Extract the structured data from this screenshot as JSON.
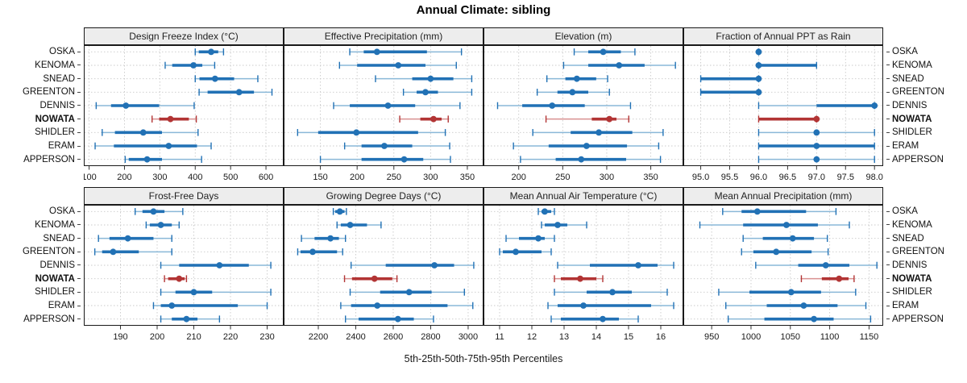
{
  "title": "Annual Climate: sibling",
  "caption": "5th-25th-50th-75th-95th Percentiles",
  "percentile_labels": [
    "5th",
    "25th",
    "50th",
    "75th",
    "95th"
  ],
  "highlight_station": "NOWATA",
  "colors": {
    "series_blue": "#2171b5",
    "series_blue_light": "#8ab8d8",
    "series_red": "#b23434",
    "series_red_light": "#d99090",
    "strip_bg": "#ededed",
    "grid": "#c9c9c9",
    "border": "#1a1a1a",
    "tick": "#333333"
  },
  "chart_data": {
    "type": "dotplot with 5-25-50-75-95 percentile intervals (2x4 trellis, shared station rows)",
    "legend_position": "none",
    "grid": "dashed",
    "stations": [
      "OSKA",
      "KENOMA",
      "SNEAD",
      "GREENTON",
      "DENNIS",
      "NOWATA",
      "SHIDLER",
      "ERAM",
      "APPERSON"
    ],
    "panels": [
      {
        "title": "Design Freeze Index (°C)",
        "row": "top",
        "xlim": [
          85,
          650
        ],
        "ticks": [
          100,
          200,
          300,
          400,
          500,
          600
        ],
        "tick_labels": [
          "100",
          "200",
          "300",
          "400",
          "500",
          "600"
        ],
        "values": {
          "OSKA": [
            400,
            410,
            445,
            465,
            480
          ],
          "KENOMA": [
            315,
            335,
            395,
            420,
            455
          ],
          "SNEAD": [
            400,
            412,
            456,
            510,
            577
          ],
          "GREENTON": [
            411,
            435,
            524,
            566,
            617
          ],
          "DENNIS": [
            120,
            162,
            204,
            298,
            397
          ],
          "NOWATA": [
            278,
            298,
            330,
            382,
            403
          ],
          "SHIDLER": [
            137,
            173,
            253,
            306,
            408
          ],
          "ERAM": [
            117,
            170,
            325,
            405,
            445
          ],
          "APPERSON": [
            202,
            212,
            264,
            306,
            418
          ]
        }
      },
      {
        "title": "Effective Precipitation (mm)",
        "row": "top",
        "xlim": [
          100,
          372
        ],
        "ticks": [
          150,
          200,
          250,
          300,
          350
        ],
        "tick_labels": [
          "150",
          "200",
          "250",
          "300",
          "350"
        ],
        "values": {
          "OSKA": [
            190,
            209,
            227,
            295,
            342
          ],
          "KENOMA": [
            176,
            200,
            256,
            293,
            335
          ],
          "SNEAD": [
            225,
            275,
            300,
            331,
            356
          ],
          "GREENTON": [
            263,
            281,
            293,
            310,
            356
          ],
          "DENNIS": [
            168,
            190,
            242,
            279,
            340
          ],
          "NOWATA": [
            258,
            286,
            304,
            315,
            324
          ],
          "SHIDLER": [
            119,
            147,
            199,
            283,
            320
          ],
          "ERAM": [
            183,
            206,
            237,
            275,
            326
          ],
          "APPERSON": [
            150,
            206,
            264,
            290,
            327
          ]
        }
      },
      {
        "title": "Elevation (m)",
        "row": "top",
        "xlim": [
          160,
          387
        ],
        "ticks": [
          200,
          250,
          300,
          350
        ],
        "tick_labels": [
          "200",
          "250",
          "300",
          "350"
        ],
        "values": {
          "OSKA": [
            263,
            279,
            296,
            316,
            332
          ],
          "KENOMA": [
            251,
            279,
            314,
            343,
            378
          ],
          "SNEAD": [
            232,
            253,
            266,
            288,
            301
          ],
          "GREENTON": [
            221,
            244,
            261,
            279,
            303
          ],
          "DENNIS": [
            176,
            204,
            238,
            275,
            327
          ],
          "NOWATA": [
            231,
            283,
            303,
            311,
            325
          ],
          "SHIDLER": [
            216,
            259,
            291,
            329,
            364
          ],
          "ERAM": [
            194,
            234,
            277,
            323,
            359
          ],
          "APPERSON": [
            202,
            242,
            271,
            322,
            361
          ]
        }
      },
      {
        "title": "Fraction of Annual PPT as Rain",
        "row": "top",
        "xlim": [
          94.7,
          98.15
        ],
        "ticks": [
          95.0,
          95.5,
          96.0,
          96.5,
          97.0,
          97.5,
          98.0
        ],
        "tick_labels": [
          "95.0",
          "95.5",
          "96.0",
          "96.5",
          "97.0",
          "97.5",
          "98.0"
        ],
        "values": {
          "OSKA": [
            96,
            96,
            96,
            96,
            96
          ],
          "KENOMA": [
            96,
            96,
            96,
            97,
            97
          ],
          "SNEAD": [
            95,
            95,
            96,
            96,
            96
          ],
          "GREENTON": [
            95,
            95,
            96,
            96,
            96
          ],
          "DENNIS": [
            96,
            97,
            98,
            98,
            98
          ],
          "NOWATA": [
            96,
            96,
            97,
            97,
            97
          ],
          "SHIDLER": [
            96,
            97,
            97,
            97,
            98
          ],
          "ERAM": [
            96,
            96,
            97,
            98,
            98
          ],
          "APPERSON": [
            96,
            97,
            97,
            97,
            98
          ]
        }
      },
      {
        "title": "Frost-Free Days",
        "row": "bottom",
        "xlim": [
          180,
          234.5
        ],
        "ticks": [
          190,
          200,
          210,
          220,
          230
        ],
        "tick_labels": [
          "190",
          "200",
          "210",
          "220",
          "230"
        ],
        "values": {
          "OSKA": [
            194,
            196,
            199,
            202,
            207
          ],
          "KENOMA": [
            197,
            198,
            201,
            204,
            206
          ],
          "SNEAD": [
            184,
            187,
            192,
            199,
            204
          ],
          "GREENTON": [
            183,
            185,
            188,
            195,
            204
          ],
          "DENNIS": [
            201,
            206,
            217,
            225,
            231
          ],
          "NOWATA": [
            202,
            203,
            206,
            207.5,
            208
          ],
          "SHIDLER": [
            201,
            205,
            210,
            215,
            231
          ],
          "ERAM": [
            199,
            201,
            204,
            222,
            230
          ],
          "APPERSON": [
            201,
            204,
            208,
            211,
            217
          ]
        }
      },
      {
        "title": "Growing Degree Days (°C)",
        "row": "bottom",
        "xlim": [
          2015,
          3082
        ],
        "ticks": [
          2200,
          2400,
          2600,
          2800,
          3000
        ],
        "tick_labels": [
          "2200",
          "2400",
          "2600",
          "2800",
          "3000"
        ],
        "values": {
          "OSKA": [
            2280,
            2290,
            2315,
            2340,
            2350
          ],
          "KENOMA": [
            2300,
            2320,
            2370,
            2460,
            2535
          ],
          "SNEAD": [
            2110,
            2180,
            2265,
            2310,
            2345
          ],
          "GREENTON": [
            2090,
            2105,
            2170,
            2300,
            2330
          ],
          "DENNIS": [
            2375,
            2560,
            2820,
            2925,
            3030
          ],
          "NOWATA": [
            2340,
            2380,
            2500,
            2595,
            2620
          ],
          "SHIDLER": [
            2370,
            2530,
            2685,
            2805,
            2980
          ],
          "ERAM": [
            2320,
            2375,
            2515,
            2890,
            3025
          ],
          "APPERSON": [
            2345,
            2415,
            2625,
            2710,
            2815
          ]
        }
      },
      {
        "title": "Mean Annual Air Temperature (°C)",
        "row": "bottom",
        "xlim": [
          10.5,
          16.7
        ],
        "ticks": [
          11,
          12,
          13,
          14,
          15,
          16
        ],
        "tick_labels": [
          "11",
          "12",
          "13",
          "14",
          "15",
          "16"
        ],
        "values": {
          "OSKA": [
            12.2,
            12.3,
            12.4,
            12.6,
            12.7
          ],
          "KENOMA": [
            12.3,
            12.4,
            12.8,
            13.1,
            13.7
          ],
          "SNEAD": [
            11.2,
            11.6,
            12.2,
            12.4,
            12.7
          ],
          "GREENTON": [
            11.0,
            11.1,
            11.5,
            12.3,
            12.6
          ],
          "DENNIS": [
            12.8,
            13.8,
            15.3,
            15.9,
            16.4
          ],
          "NOWATA": [
            12.7,
            12.9,
            13.5,
            14.0,
            14.2
          ],
          "SHIDLER": [
            12.7,
            13.7,
            14.5,
            15.1,
            16.2
          ],
          "ERAM": [
            12.5,
            12.8,
            13.6,
            15.7,
            16.4
          ],
          "APPERSON": [
            12.6,
            12.9,
            14.2,
            14.7,
            15.3
          ]
        }
      },
      {
        "title": "Mean Annual Precipitation (mm)",
        "row": "bottom",
        "xlim": [
          914,
          1168
        ],
        "ticks": [
          950,
          1000,
          1050,
          1100,
          1150
        ],
        "tick_labels": [
          "950",
          "1000",
          "1050",
          "1100",
          "1150"
        ],
        "values": {
          "OSKA": [
            964,
            988,
            1008,
            1070,
            1108
          ],
          "KENOMA": [
            935,
            990,
            1045,
            1085,
            1125
          ],
          "SNEAD": [
            990,
            1015,
            1053,
            1080,
            1097
          ],
          "GREENTON": [
            988,
            1003,
            1032,
            1077,
            1098
          ],
          "DENNIS": [
            1006,
            1060,
            1095,
            1125,
            1160
          ],
          "NOWATA": [
            1064,
            1090,
            1112,
            1124,
            1131
          ],
          "SHIDLER": [
            959,
            998,
            1051,
            1089,
            1133
          ],
          "ERAM": [
            968,
            1020,
            1067,
            1110,
            1146
          ],
          "APPERSON": [
            971,
            1017,
            1080,
            1105,
            1152
          ]
        }
      }
    ]
  }
}
